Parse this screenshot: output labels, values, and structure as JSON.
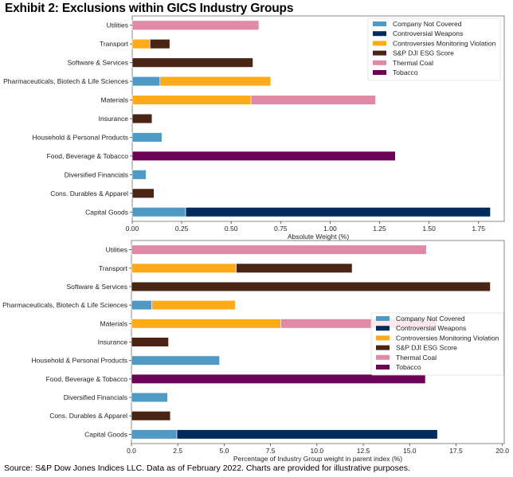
{
  "title": "Exhibit 2: Exclusions within GICS Industry Groups",
  "source": "Source: S&P Dow Jones Indices LLC. Data as of February 2022. Charts are provided for illustrative purposes.",
  "colors": {
    "Company Not Covered": "#4f9ac4",
    "Controversial Weapons": "#002b5c",
    "Controversies Monitoring Violation": "#ffab19",
    "S&P DJI ESG Score": "#4a2516",
    "Thermal Coal": "#e08aa5",
    "Tobacco": "#6b0356"
  },
  "chart_data": [
    {
      "type": "bar",
      "orientation": "horizontal",
      "stacked": true,
      "categories": [
        "Capital Goods",
        "Cons. Durables & Apparel",
        "Diversified Financials",
        "Food, Beverage & Tobacco",
        "Household & Personal Products",
        "Insurance",
        "Materials",
        "Pharmaceuticals, Biotech & Life Sciences",
        "Software & Services",
        "Transport",
        "Utilities"
      ],
      "series": [
        {
          "name": "Company Not Covered",
          "values": [
            0.27,
            0,
            0.07,
            0,
            0.15,
            0,
            0,
            0.14,
            0,
            0,
            0
          ]
        },
        {
          "name": "Controversial Weapons",
          "values": [
            1.54,
            0,
            0,
            0,
            0,
            0,
            0,
            0,
            0,
            0,
            0
          ]
        },
        {
          "name": "Controversies Monitoring Violation",
          "values": [
            0,
            0,
            0,
            0,
            0,
            0,
            0.6,
            0.56,
            0,
            0.09,
            0
          ]
        },
        {
          "name": "S&P DJI ESG Score",
          "values": [
            0,
            0.11,
            0,
            0,
            0,
            0.1,
            0,
            0,
            0.61,
            0.1,
            0
          ]
        },
        {
          "name": "Thermal Coal",
          "values": [
            0,
            0,
            0,
            0,
            0,
            0,
            0.63,
            0,
            0,
            0,
            0.64
          ]
        },
        {
          "name": "Tobacco",
          "values": [
            0,
            0,
            0,
            1.33,
            0,
            0,
            0,
            0,
            0,
            0,
            0
          ]
        }
      ],
      "xlabel": "Absolute Weight (%)",
      "ylabel": "",
      "xlim": [
        0,
        1.88
      ],
      "xticks": [
        0,
        0.25,
        0.5,
        0.75,
        1.0,
        1.25,
        1.5,
        1.75
      ],
      "xtick_labels": [
        "0.00",
        "0.25",
        "0.50",
        "0.75",
        "1.00",
        "1.25",
        "1.50",
        "1.75"
      ],
      "legend": "top-right",
      "grid": false
    },
    {
      "type": "bar",
      "orientation": "horizontal",
      "stacked": true,
      "categories": [
        "Capital Goods",
        "Cons. Durables & Apparel",
        "Diversified Financials",
        "Food, Beverage & Tobacco",
        "Household & Personal Products",
        "Insurance",
        "Materials",
        "Pharmaceuticals, Biotech & Life Sciences",
        "Software & Services",
        "Transport",
        "Utilities"
      ],
      "series": [
        {
          "name": "Company Not Covered",
          "values": [
            2.45,
            0,
            1.95,
            0,
            4.75,
            0,
            0,
            1.1,
            0,
            0,
            0
          ]
        },
        {
          "name": "Controversial Weapons",
          "values": [
            14.05,
            0,
            0,
            0,
            0,
            0,
            0,
            0,
            0,
            0,
            0
          ]
        },
        {
          "name": "Controversies Monitoring Violation",
          "values": [
            0,
            0,
            0,
            0,
            0,
            0,
            8.05,
            4.5,
            0,
            5.65,
            0
          ]
        },
        {
          "name": "S&P DJI ESG Score",
          "values": [
            0,
            2.1,
            0,
            0,
            0,
            2.0,
            0,
            0,
            19.35,
            6.25,
            0
          ]
        },
        {
          "name": "Thermal Coal",
          "values": [
            0,
            0,
            0,
            0,
            0,
            0,
            8.4,
            0,
            0,
            0,
            15.9
          ]
        },
        {
          "name": "Tobacco",
          "values": [
            0,
            0,
            0,
            15.85,
            0,
            0,
            0,
            0,
            0,
            0,
            0
          ]
        }
      ],
      "xlabel": "Percentage of Industry Group weight in parent index (%)",
      "ylabel": "",
      "xlim": [
        0,
        20.1
      ],
      "xticks": [
        0,
        2.5,
        5,
        7.5,
        10,
        12.5,
        15,
        17.5,
        20
      ],
      "xtick_labels": [
        "0.0",
        "2.5",
        "5.0",
        "7.5",
        "10.0",
        "12.5",
        "15.0",
        "17.5",
        "20.0"
      ],
      "legend": "center-right",
      "grid": false
    }
  ]
}
